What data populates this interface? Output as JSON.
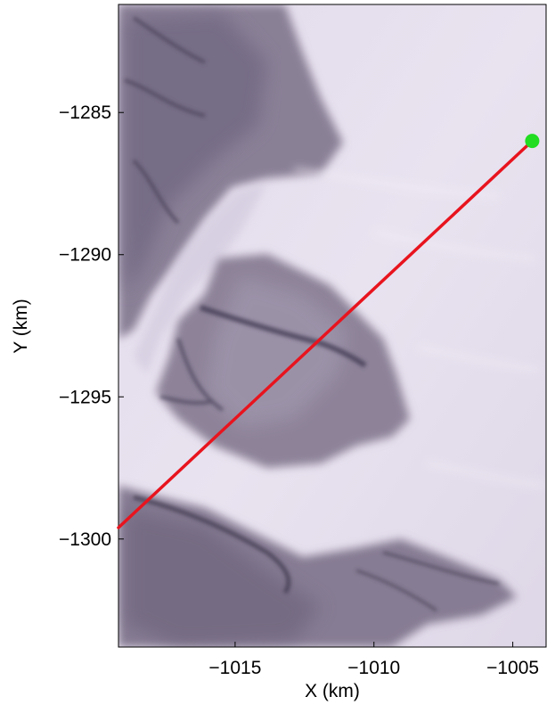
{
  "chart_data": {
    "type": "map",
    "xlabel": "X (km)",
    "ylabel": "Y (km)",
    "xlim": [
      -1019.2,
      -1003.8
    ],
    "ylim": [
      -1303.8,
      -1281.2
    ],
    "xticks": [
      {
        "value": -1015,
        "label": "−1015"
      },
      {
        "value": -1010,
        "label": "−1010"
      },
      {
        "value": -1005,
        "label": "−1005"
      }
    ],
    "yticks": [
      {
        "value": -1285,
        "label": "−1285"
      },
      {
        "value": -1290,
        "label": "−1290"
      },
      {
        "value": -1295,
        "label": "−1295"
      },
      {
        "value": -1300,
        "label": "−1300"
      }
    ],
    "profile_line": {
      "color": "#e8141e",
      "start": {
        "x": -1019.2,
        "y": -1299.6
      },
      "end": {
        "x": -1004.3,
        "y": -1286.0
      }
    },
    "marker": {
      "x": -1004.3,
      "y": -1286.0,
      "color": "#22dd22"
    },
    "grid": false,
    "background": "satellite imagery of ice surface with exposed rock outcrops"
  }
}
